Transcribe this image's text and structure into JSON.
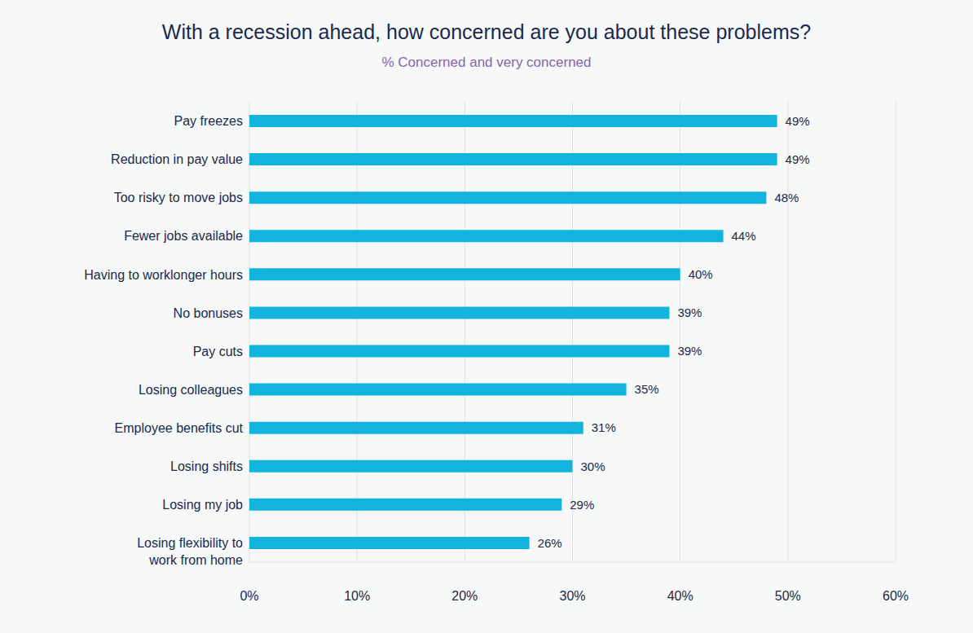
{
  "chart_data": {
    "type": "bar",
    "title": "With a recession ahead, how concerned are you about these problems?",
    "subtitle": "% Concerned and very concerned",
    "orientation": "horizontal",
    "categories": [
      "Pay freezes",
      "Reduction in pay value",
      "Too risky to move jobs",
      "Fewer jobs available",
      "Having to worklonger hours",
      "No bonuses",
      "Pay cuts",
      "Losing colleagues",
      "Employee benefits cut",
      "Losing shifts",
      "Losing my job",
      "Losing flexibility to work from home"
    ],
    "values": [
      49,
      49,
      48,
      44,
      40,
      39,
      39,
      35,
      31,
      30,
      29,
      26
    ],
    "value_labels": [
      "49%",
      "49%",
      "48%",
      "44%",
      "40%",
      "39%",
      "39%",
      "35%",
      "31%",
      "30%",
      "29%",
      "26%"
    ],
    "color": "#12b4de",
    "xlim": [
      0,
      60
    ],
    "xticks": [
      {
        "value": 0,
        "label": "0%"
      },
      {
        "value": 10,
        "label": "10%"
      },
      {
        "value": 20,
        "label": "20%"
      },
      {
        "value": 30,
        "label": "30%"
      },
      {
        "value": 40,
        "label": "40%"
      },
      {
        "value": 50,
        "label": "50%"
      },
      {
        "value": 60,
        "label": "60%"
      }
    ],
    "grid": true,
    "data_labels": true
  }
}
